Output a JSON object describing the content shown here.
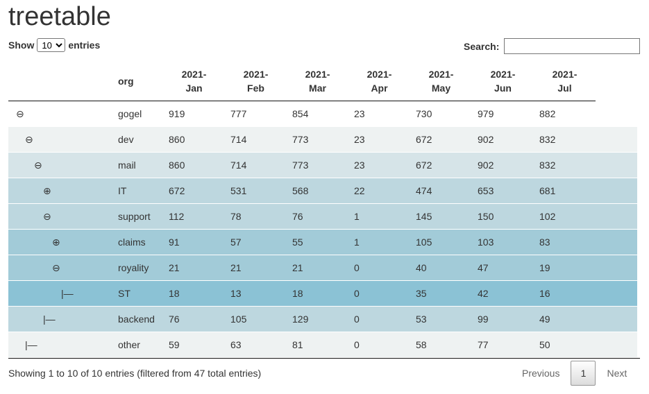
{
  "title": "treetable",
  "length_menu": {
    "show_label": "Show",
    "selected": "10",
    "entries_label": "entries"
  },
  "search": {
    "label": "Search:",
    "value": ""
  },
  "columns": [
    "org",
    "2021-\nJan",
    "2021-\nFeb",
    "2021-\nMar",
    "2021-\nApr",
    "2021-\nMay",
    "2021-\nJun",
    "2021-\nJul"
  ],
  "rows": [
    {
      "toggle": "⊖",
      "level": 0,
      "org": "gogel",
      "values": [
        "919",
        "777",
        "854",
        "23",
        "730",
        "979",
        "882"
      ],
      "bg": "#ffffff"
    },
    {
      "toggle": "⊖",
      "level": 1,
      "org": "dev",
      "values": [
        "860",
        "714",
        "773",
        "23",
        "672",
        "902",
        "832"
      ],
      "bg": "#eef2f2"
    },
    {
      "toggle": "⊖",
      "level": 2,
      "org": "mail",
      "values": [
        "860",
        "714",
        "773",
        "23",
        "672",
        "902",
        "832"
      ],
      "bg": "#d6e4e8"
    },
    {
      "toggle": "⊕",
      "level": 3,
      "org": "IT",
      "values": [
        "672",
        "531",
        "568",
        "22",
        "474",
        "653",
        "681"
      ],
      "bg": "#bdd7df"
    },
    {
      "toggle": "⊖",
      "level": 3,
      "org": "support",
      "values": [
        "112",
        "78",
        "76",
        "1",
        "145",
        "150",
        "102"
      ],
      "bg": "#bdd7df"
    },
    {
      "toggle": "⊕",
      "level": 4,
      "org": "claims",
      "values": [
        "91",
        "57",
        "55",
        "1",
        "105",
        "103",
        "83"
      ],
      "bg": "#a2cbd8"
    },
    {
      "toggle": "⊖",
      "level": 4,
      "org": "royality",
      "values": [
        "21",
        "21",
        "21",
        "0",
        "40",
        "47",
        "19"
      ],
      "bg": "#a2cbd8"
    },
    {
      "toggle": "|—",
      "level": 5,
      "org": "ST",
      "values": [
        "18",
        "13",
        "18",
        "0",
        "35",
        "42",
        "16"
      ],
      "bg": "#8bc2d5"
    },
    {
      "toggle": "|—",
      "level": 3,
      "org": "backend",
      "values": [
        "76",
        "105",
        "129",
        "0",
        "53",
        "99",
        "49"
      ],
      "bg": "#bdd7df"
    },
    {
      "toggle": "|—",
      "level": 1,
      "org": "other",
      "values": [
        "59",
        "63",
        "81",
        "0",
        "58",
        "77",
        "50"
      ],
      "bg": "#eef2f2"
    }
  ],
  "info": "Showing 1 to 10 of 10 entries (filtered from 47 total entries)",
  "pagination": {
    "previous": "Previous",
    "current": "1",
    "next": "Next"
  }
}
